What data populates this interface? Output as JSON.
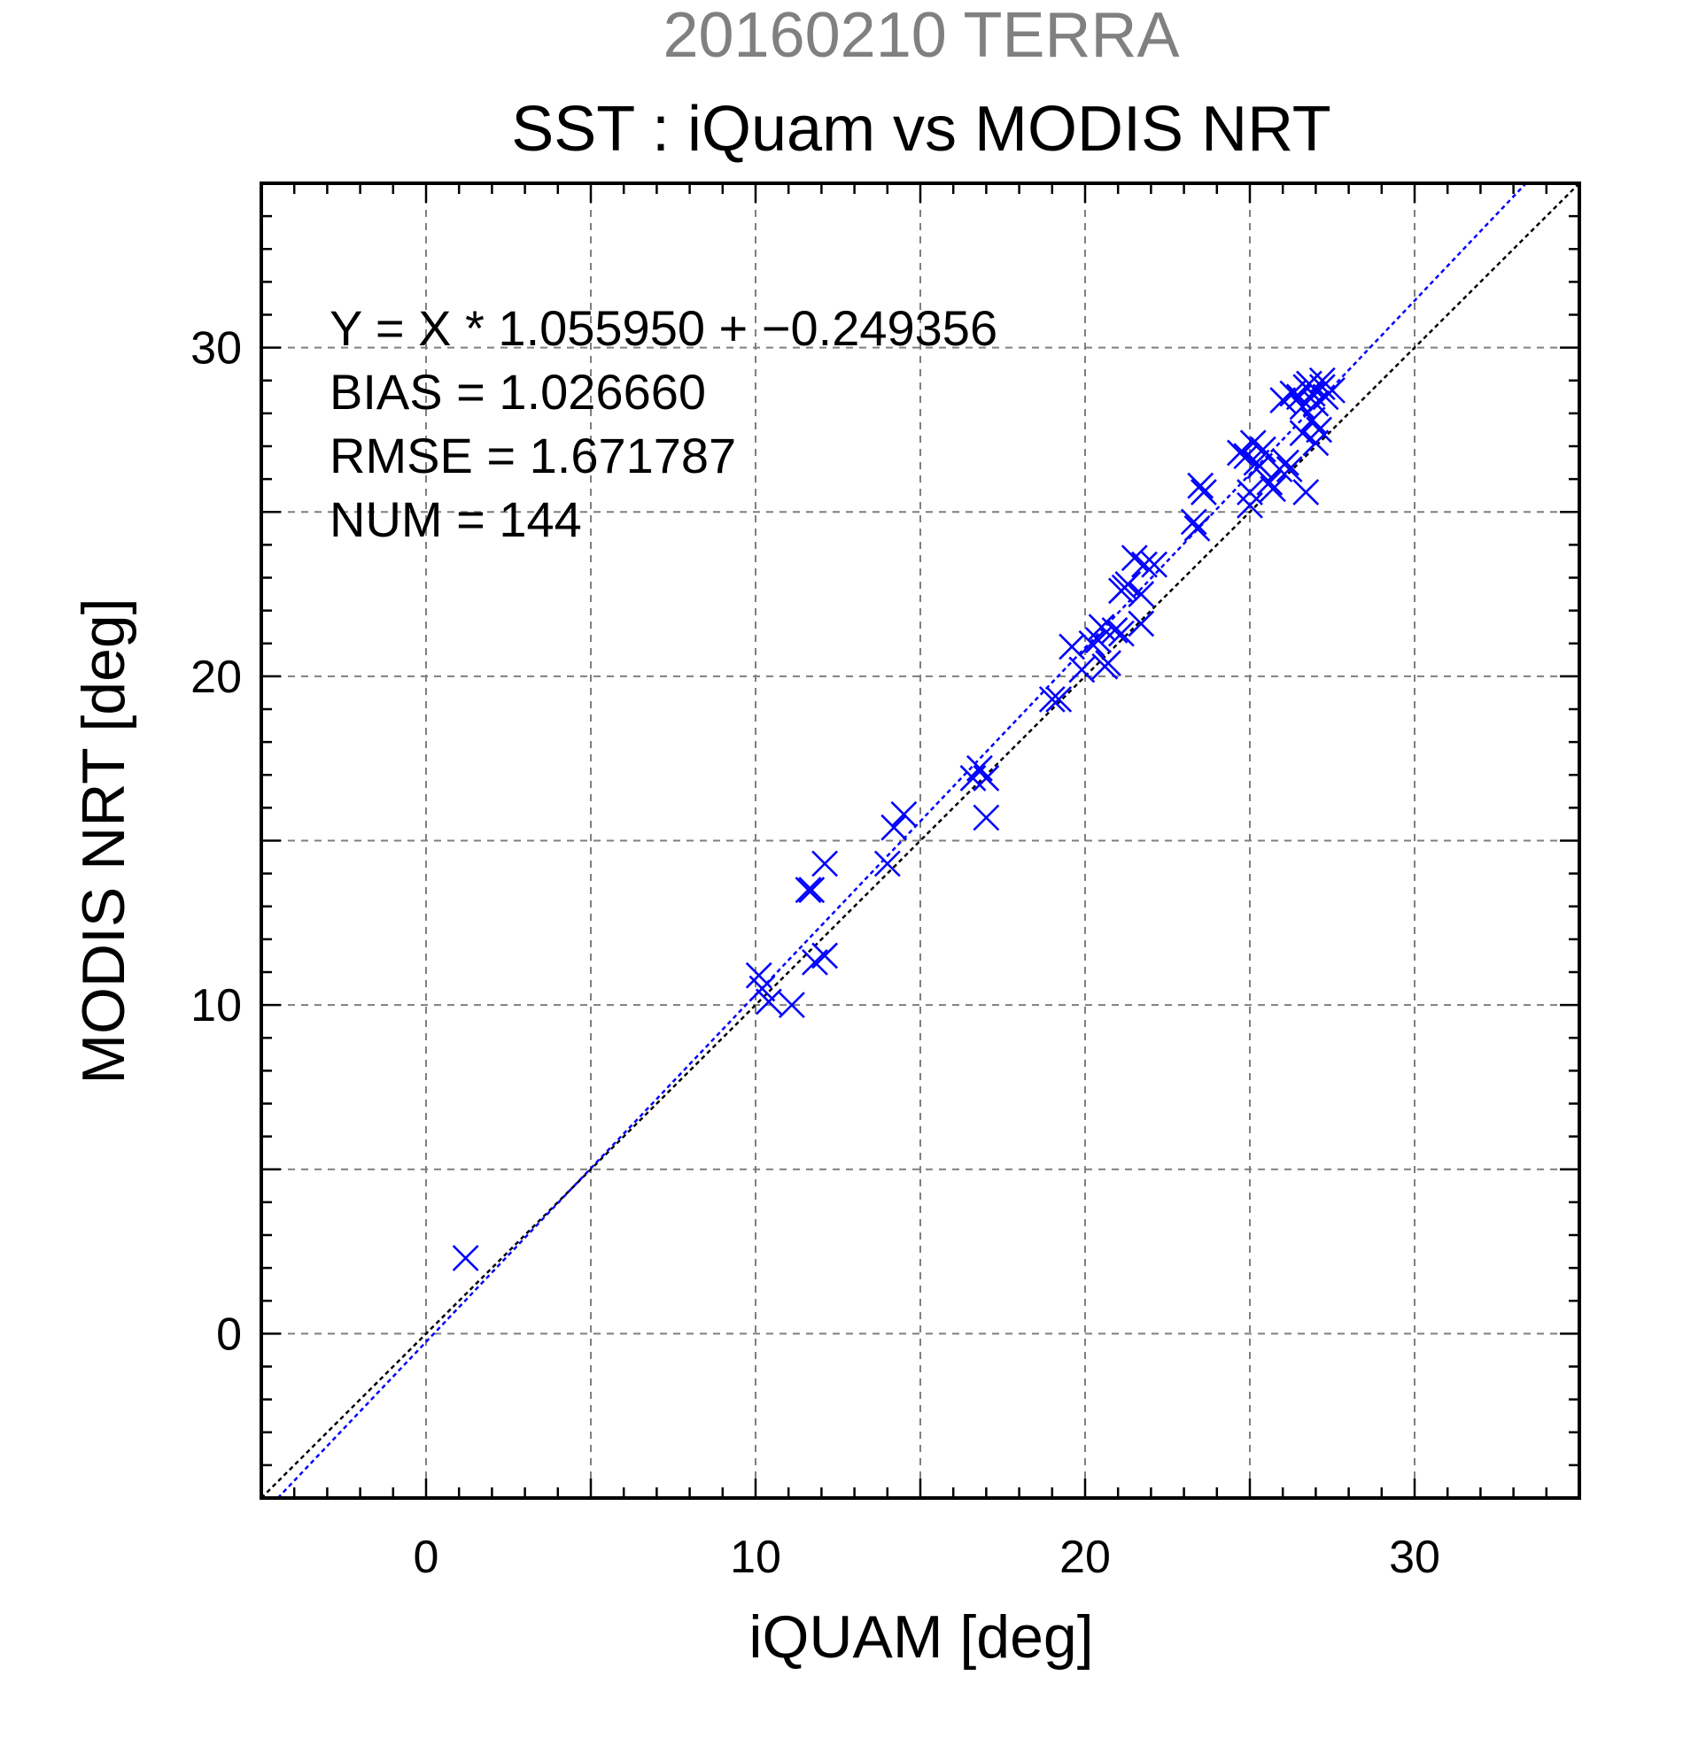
{
  "chart_data": {
    "type": "scatter",
    "super_title": "20160210 TERRA",
    "title": "SST : iQuam vs MODIS NRT",
    "xlabel": "iQUAM [deg]",
    "ylabel": "MODIS NRT [deg]",
    "xlim": [
      -5,
      35
    ],
    "ylim": [
      -5,
      35
    ],
    "xticks": [
      0,
      10,
      20,
      30
    ],
    "yticks": [
      0,
      10,
      20,
      30
    ],
    "xtick_labels": [
      "0",
      "10",
      "20",
      "30"
    ],
    "ytick_labels": [
      "0",
      "10",
      "20",
      "30"
    ],
    "minor_tick_step": 1,
    "grid_step": 5,
    "grid": true,
    "marker": "x",
    "colors": {
      "points": "#0000ff",
      "fit_line": "#0000ff",
      "identity_line": "#000000",
      "grid": "#7f7f7f",
      "super_title": "#808080"
    },
    "stats": {
      "equation": "Y = X * 1.055950 + −0.249356",
      "bias": "BIAS = 1.026660",
      "rmse": "RMSE = 1.671787",
      "num": "NUM = 144"
    },
    "fit": {
      "slope": 1.05595,
      "intercept": -0.249356
    },
    "identity": {
      "slope": 1,
      "intercept": 0
    },
    "points": [
      [
        1.2,
        2.3
      ],
      [
        10.1,
        10.9
      ],
      [
        10.2,
        10.5
      ],
      [
        10.4,
        10.1
      ],
      [
        11.1,
        10.0
      ],
      [
        11.6,
        13.5
      ],
      [
        11.7,
        13.5
      ],
      [
        11.8,
        11.3
      ],
      [
        12.1,
        11.5
      ],
      [
        12.1,
        14.3
      ],
      [
        14.0,
        14.3
      ],
      [
        14.2,
        15.4
      ],
      [
        14.5,
        15.8
      ],
      [
        16.6,
        16.9
      ],
      [
        16.8,
        17.2
      ],
      [
        17.0,
        15.7
      ],
      [
        17.0,
        16.9
      ],
      [
        19.0,
        19.3
      ],
      [
        19.2,
        19.3
      ],
      [
        19.6,
        20.9
      ],
      [
        19.9,
        20.2
      ],
      [
        20.2,
        21.0
      ],
      [
        20.4,
        21.1
      ],
      [
        20.5,
        21.5
      ],
      [
        20.6,
        20.3
      ],
      [
        20.7,
        20.4
      ],
      [
        20.9,
        21.4
      ],
      [
        21.1,
        21.3
      ],
      [
        21.1,
        22.6
      ],
      [
        21.2,
        22.7
      ],
      [
        21.3,
        22.8
      ],
      [
        21.5,
        23.6
      ],
      [
        21.7,
        21.6
      ],
      [
        21.7,
        22.5
      ],
      [
        21.8,
        23.4
      ],
      [
        22.1,
        23.4
      ],
      [
        23.3,
        24.7
      ],
      [
        23.4,
        24.5
      ],
      [
        23.5,
        25.8
      ],
      [
        23.6,
        25.6
      ],
      [
        24.7,
        26.8
      ],
      [
        24.9,
        26.7
      ],
      [
        25.0,
        25.2
      ],
      [
        25.0,
        25.6
      ],
      [
        25.1,
        27.1
      ],
      [
        25.2,
        26.5
      ],
      [
        25.3,
        26.4
      ],
      [
        25.4,
        26.9
      ],
      [
        25.6,
        25.9
      ],
      [
        25.7,
        25.7
      ],
      [
        25.9,
        26.3
      ],
      [
        26.0,
        28.4
      ],
      [
        26.1,
        26.5
      ],
      [
        26.2,
        26.3
      ],
      [
        26.3,
        28.6
      ],
      [
        26.5,
        28.5
      ],
      [
        26.6,
        28.2
      ],
      [
        26.6,
        27.4
      ],
      [
        26.7,
        25.6
      ],
      [
        26.7,
        28.8
      ],
      [
        26.8,
        28.9
      ],
      [
        26.9,
        27.8
      ],
      [
        26.9,
        28.6
      ],
      [
        27.0,
        27.1
      ],
      [
        27.0,
        28.3
      ],
      [
        27.1,
        27.5
      ],
      [
        27.2,
        28.8
      ],
      [
        27.2,
        29.0
      ],
      [
        27.3,
        28.5
      ],
      [
        27.5,
        28.7
      ]
    ]
  }
}
